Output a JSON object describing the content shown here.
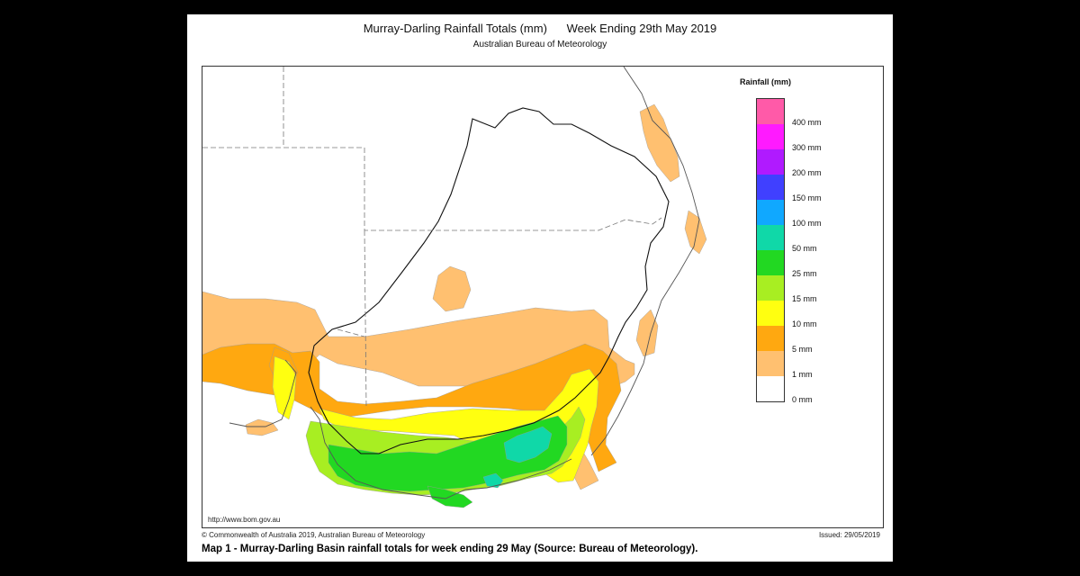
{
  "map": {
    "title": "Murray-Darling Rainfall Totals (mm)      Week Ending 29th May 2019",
    "subtitle": "Australian Bureau of Meteorology",
    "source_url": "http://www.bom.gov.au",
    "copyright": "© Commonwealth of Australia 2019, Australian Bureau of Meteorology",
    "issued": "Issued: 29/05/2019",
    "caption": "Map 1 - Murray-Darling Basin rainfall totals for week ending 29 May (Source: Bureau of Meteorology)."
  },
  "legend": {
    "title": "Rainfall (mm)",
    "swatch_colors": [
      "#ff5aa8",
      "#ff1aff",
      "#b01aff",
      "#4040ff",
      "#10a8ff",
      "#10d8a8",
      "#22d822",
      "#a8ee22",
      "#ffff10",
      "#ffa810",
      "#ffc070",
      "#ffffff"
    ],
    "labels": [
      "400 mm",
      "300 mm",
      "200 mm",
      "150 mm",
      "100 mm",
      "50 mm",
      "25 mm",
      "15 mm",
      "10 mm",
      "5 mm",
      "1 mm",
      "0 mm"
    ]
  },
  "colors": {
    "mm_1_5": "#ffc070",
    "mm_5_10": "#ffa810",
    "mm_10_15": "#ffff10",
    "mm_15_25": "#a8ee22",
    "mm_25_50": "#22d822",
    "mm_50_100": "#10d8a8"
  }
}
